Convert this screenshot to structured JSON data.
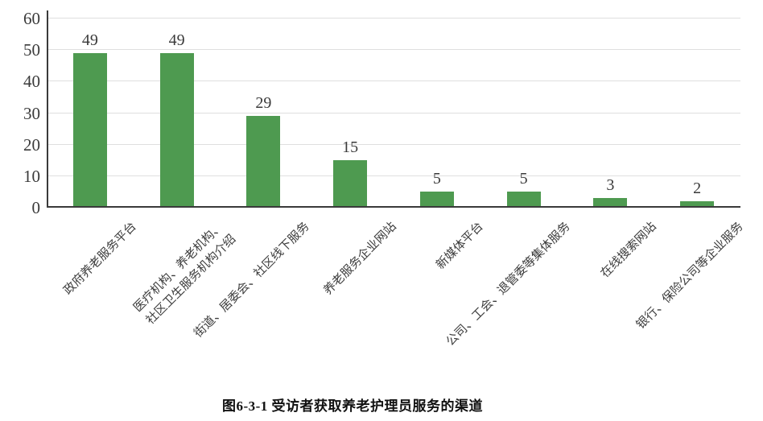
{
  "figure": {
    "caption": "图6-3-1 受访者获取养老护理员服务的渠道"
  },
  "chart_data": {
    "type": "bar",
    "categories": [
      "政府养老服务平台",
      "医疗机构、养老机构、\n社区卫生服务机构介绍",
      "街道、居委会、社区线下服务",
      "养老服务企业网站",
      "新媒体平台",
      "公司、工会、退管委等集体服务",
      "在线搜索网站",
      "银行、保险公司等企业服务"
    ],
    "values": [
      49,
      49,
      29,
      15,
      5,
      5,
      3,
      2
    ],
    "title": "图6-3-1 受访者获取养老护理员服务的渠道",
    "xlabel": "",
    "ylabel": "",
    "ylim": [
      0,
      60
    ],
    "yticks": [
      0,
      10,
      20,
      30,
      40,
      50,
      60
    ],
    "grid": true,
    "legend": false,
    "data_labels": true,
    "bar_color": "#4e9a50",
    "axis_color": "#3a3a3a",
    "gridline_color": "#dfdfdf",
    "label_color": "#3d3d3d"
  }
}
